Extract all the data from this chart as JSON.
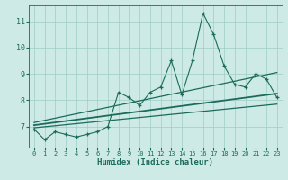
{
  "xlabel": "Humidex (Indice chaleur)",
  "bg_color": "#ceeae6",
  "grid_color": "#9eccc6",
  "line_color": "#1a6b5a",
  "x_data": [
    0,
    1,
    2,
    3,
    4,
    5,
    6,
    7,
    8,
    9,
    10,
    11,
    12,
    13,
    14,
    15,
    16,
    17,
    18,
    19,
    20,
    21,
    22,
    23
  ],
  "y_data": [
    6.9,
    6.5,
    6.8,
    6.7,
    6.6,
    6.7,
    6.8,
    7.0,
    8.3,
    8.1,
    7.8,
    8.3,
    8.5,
    9.5,
    8.2,
    9.5,
    11.3,
    10.5,
    9.3,
    8.6,
    8.5,
    9.0,
    8.8,
    8.1
  ],
  "xlim": [
    -0.5,
    23.5
  ],
  "ylim": [
    6.2,
    11.6
  ],
  "yticks": [
    7,
    8,
    9,
    10,
    11
  ],
  "xticks": [
    0,
    1,
    2,
    3,
    4,
    5,
    6,
    7,
    8,
    9,
    10,
    11,
    12,
    13,
    14,
    15,
    16,
    17,
    18,
    19,
    20,
    21,
    22,
    23
  ],
  "reg_line1_start": 6.95,
  "reg_line1_end": 7.85,
  "reg_line2_start": 7.05,
  "reg_line2_end": 8.25,
  "reg_line3_start": 7.15,
  "reg_line3_end": 9.05
}
